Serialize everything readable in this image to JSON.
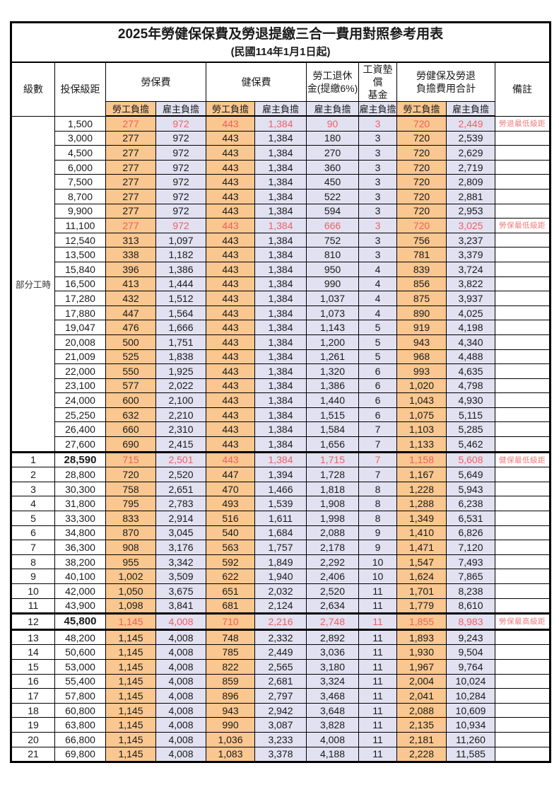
{
  "title": "2025年勞健保保費及勞退提繳三合一費用對照參考用表",
  "subtitle": "(民國114年1月1日起)",
  "colors": {
    "employee_bg": "#F9C78F",
    "employer_bg": "#E1E1F2",
    "value_red": "#F15F5F",
    "remark_red": "#F07B7B",
    "border_color": "#000000"
  },
  "header": {
    "level": "級數",
    "bracket": "投保級距",
    "groups": [
      {
        "label_lines": [
          "勞保費"
        ],
        "subs": [
          "勞工負擔",
          "雇主負擔"
        ]
      },
      {
        "label_lines": [
          "健保費"
        ],
        "subs": [
          "勞工負擔",
          "雇主負擔"
        ]
      },
      {
        "label_lines": [
          "勞工退休",
          "金(提繳6%)"
        ],
        "subs": [
          "雇主負擔"
        ]
      },
      {
        "label_lines": [
          "工資墊償",
          "基金"
        ],
        "subs": [
          "雇主負擔"
        ]
      },
      {
        "label_lines": [
          "勞健保及勞退",
          "負擔費用合計"
        ],
        "subs": [
          "勞工負擔",
          "雇主負擔"
        ]
      }
    ],
    "remark": "備註"
  },
  "part_time_label": "部分工時",
  "rows": [
    {
      "level": "",
      "bracket": "1,500",
      "cells": [
        "277",
        "972",
        "443",
        "1,384",
        "90",
        "3",
        "720",
        "2,449"
      ],
      "remark": "勞退最低級距",
      "highlight": true,
      "bold_bracket": false,
      "thick_top": false
    },
    {
      "level": "",
      "bracket": "3,000",
      "cells": [
        "277",
        "972",
        "443",
        "1,384",
        "180",
        "3",
        "720",
        "2,539"
      ],
      "remark": "",
      "highlight": false,
      "bold_bracket": false,
      "thick_top": false
    },
    {
      "level": "",
      "bracket": "4,500",
      "cells": [
        "277",
        "972",
        "443",
        "1,384",
        "270",
        "3",
        "720",
        "2,629"
      ],
      "remark": "",
      "highlight": false,
      "bold_bracket": false,
      "thick_top": false
    },
    {
      "level": "",
      "bracket": "6,000",
      "cells": [
        "277",
        "972",
        "443",
        "1,384",
        "360",
        "3",
        "720",
        "2,719"
      ],
      "remark": "",
      "highlight": false,
      "bold_bracket": false,
      "thick_top": false
    },
    {
      "level": "",
      "bracket": "7,500",
      "cells": [
        "277",
        "972",
        "443",
        "1,384",
        "450",
        "3",
        "720",
        "2,809"
      ],
      "remark": "",
      "highlight": false,
      "bold_bracket": false,
      "thick_top": false
    },
    {
      "level": "",
      "bracket": "8,700",
      "cells": [
        "277",
        "972",
        "443",
        "1,384",
        "522",
        "3",
        "720",
        "2,881"
      ],
      "remark": "",
      "highlight": false,
      "bold_bracket": false,
      "thick_top": false
    },
    {
      "level": "",
      "bracket": "9,900",
      "cells": [
        "277",
        "972",
        "443",
        "1,384",
        "594",
        "3",
        "720",
        "2,953"
      ],
      "remark": "",
      "highlight": false,
      "bold_bracket": false,
      "thick_top": false
    },
    {
      "level": "",
      "bracket": "11,100",
      "cells": [
        "277",
        "972",
        "443",
        "1,384",
        "666",
        "3",
        "720",
        "3,025"
      ],
      "remark": "勞保最低級距",
      "highlight": true,
      "bold_bracket": false,
      "thick_top": false
    },
    {
      "level": "",
      "bracket": "12,540",
      "cells": [
        "313",
        "1,097",
        "443",
        "1,384",
        "752",
        "3",
        "756",
        "3,237"
      ],
      "remark": "",
      "highlight": false,
      "bold_bracket": false,
      "thick_top": false
    },
    {
      "level": "",
      "bracket": "13,500",
      "cells": [
        "338",
        "1,182",
        "443",
        "1,384",
        "810",
        "3",
        "781",
        "3,379"
      ],
      "remark": "",
      "highlight": false,
      "bold_bracket": false,
      "thick_top": false
    },
    {
      "level": "",
      "bracket": "15,840",
      "cells": [
        "396",
        "1,386",
        "443",
        "1,384",
        "950",
        "4",
        "839",
        "3,724"
      ],
      "remark": "",
      "highlight": false,
      "bold_bracket": false,
      "thick_top": false
    },
    {
      "level": "",
      "bracket": "16,500",
      "cells": [
        "413",
        "1,444",
        "443",
        "1,384",
        "990",
        "4",
        "856",
        "3,822"
      ],
      "remark": "",
      "highlight": false,
      "bold_bracket": false,
      "thick_top": false
    },
    {
      "level": "",
      "bracket": "17,280",
      "cells": [
        "432",
        "1,512",
        "443",
        "1,384",
        "1,037",
        "4",
        "875",
        "3,937"
      ],
      "remark": "",
      "highlight": false,
      "bold_bracket": false,
      "thick_top": false
    },
    {
      "level": "",
      "bracket": "17,880",
      "cells": [
        "447",
        "1,564",
        "443",
        "1,384",
        "1,073",
        "4",
        "890",
        "4,025"
      ],
      "remark": "",
      "highlight": false,
      "bold_bracket": false,
      "thick_top": false
    },
    {
      "level": "",
      "bracket": "19,047",
      "cells": [
        "476",
        "1,666",
        "443",
        "1,384",
        "1,143",
        "5",
        "919",
        "4,198"
      ],
      "remark": "",
      "highlight": false,
      "bold_bracket": false,
      "thick_top": false
    },
    {
      "level": "",
      "bracket": "20,008",
      "cells": [
        "500",
        "1,751",
        "443",
        "1,384",
        "1,200",
        "5",
        "943",
        "4,340"
      ],
      "remark": "",
      "highlight": false,
      "bold_bracket": false,
      "thick_top": false
    },
    {
      "level": "",
      "bracket": "21,009",
      "cells": [
        "525",
        "1,838",
        "443",
        "1,384",
        "1,261",
        "5",
        "968",
        "4,488"
      ],
      "remark": "",
      "highlight": false,
      "bold_bracket": false,
      "thick_top": false
    },
    {
      "level": "",
      "bracket": "22,000",
      "cells": [
        "550",
        "1,925",
        "443",
        "1,384",
        "1,320",
        "6",
        "993",
        "4,635"
      ],
      "remark": "",
      "highlight": false,
      "bold_bracket": false,
      "thick_top": false
    },
    {
      "level": "",
      "bracket": "23,100",
      "cells": [
        "577",
        "2,022",
        "443",
        "1,384",
        "1,386",
        "6",
        "1,020",
        "4,798"
      ],
      "remark": "",
      "highlight": false,
      "bold_bracket": false,
      "thick_top": false
    },
    {
      "level": "",
      "bracket": "24,000",
      "cells": [
        "600",
        "2,100",
        "443",
        "1,384",
        "1,440",
        "6",
        "1,043",
        "4,930"
      ],
      "remark": "",
      "highlight": false,
      "bold_bracket": false,
      "thick_top": false
    },
    {
      "level": "",
      "bracket": "25,250",
      "cells": [
        "632",
        "2,210",
        "443",
        "1,384",
        "1,515",
        "6",
        "1,075",
        "5,115"
      ],
      "remark": "",
      "highlight": false,
      "bold_bracket": false,
      "thick_top": false
    },
    {
      "level": "",
      "bracket": "26,400",
      "cells": [
        "660",
        "2,310",
        "443",
        "1,384",
        "1,584",
        "7",
        "1,103",
        "5,285"
      ],
      "remark": "",
      "highlight": false,
      "bold_bracket": false,
      "thick_top": false
    },
    {
      "level": "",
      "bracket": "27,600",
      "cells": [
        "690",
        "2,415",
        "443",
        "1,384",
        "1,656",
        "7",
        "1,133",
        "5,462"
      ],
      "remark": "",
      "highlight": false,
      "bold_bracket": false,
      "thick_top": false
    },
    {
      "level": "1",
      "bracket": "28,590",
      "cells": [
        "715",
        "2,501",
        "443",
        "1,384",
        "1,715",
        "7",
        "1,158",
        "5,608"
      ],
      "remark": "健保最低級距",
      "highlight": true,
      "bold_bracket": true,
      "thick_top": true
    },
    {
      "level": "2",
      "bracket": "28,800",
      "cells": [
        "720",
        "2,520",
        "447",
        "1,394",
        "1,728",
        "7",
        "1,167",
        "5,649"
      ],
      "remark": "",
      "highlight": false,
      "bold_bracket": false,
      "thick_top": false
    },
    {
      "level": "3",
      "bracket": "30,300",
      "cells": [
        "758",
        "2,651",
        "470",
        "1,466",
        "1,818",
        "8",
        "1,228",
        "5,943"
      ],
      "remark": "",
      "highlight": false,
      "bold_bracket": false,
      "thick_top": false
    },
    {
      "level": "4",
      "bracket": "31,800",
      "cells": [
        "795",
        "2,783",
        "493",
        "1,539",
        "1,908",
        "8",
        "1,288",
        "6,238"
      ],
      "remark": "",
      "highlight": false,
      "bold_bracket": false,
      "thick_top": false
    },
    {
      "level": "5",
      "bracket": "33,300",
      "cells": [
        "833",
        "2,914",
        "516",
        "1,611",
        "1,998",
        "8",
        "1,349",
        "6,531"
      ],
      "remark": "",
      "highlight": false,
      "bold_bracket": false,
      "thick_top": false
    },
    {
      "level": "6",
      "bracket": "34,800",
      "cells": [
        "870",
        "3,045",
        "540",
        "1,684",
        "2,088",
        "9",
        "1,410",
        "6,826"
      ],
      "remark": "",
      "highlight": false,
      "bold_bracket": false,
      "thick_top": false
    },
    {
      "level": "7",
      "bracket": "36,300",
      "cells": [
        "908",
        "3,176",
        "563",
        "1,757",
        "2,178",
        "9",
        "1,471",
        "7,120"
      ],
      "remark": "",
      "highlight": false,
      "bold_bracket": false,
      "thick_top": false
    },
    {
      "level": "8",
      "bracket": "38,200",
      "cells": [
        "955",
        "3,342",
        "592",
        "1,849",
        "2,292",
        "10",
        "1,547",
        "7,493"
      ],
      "remark": "",
      "highlight": false,
      "bold_bracket": false,
      "thick_top": false
    },
    {
      "level": "9",
      "bracket": "40,100",
      "cells": [
        "1,002",
        "3,509",
        "622",
        "1,940",
        "2,406",
        "10",
        "1,624",
        "7,865"
      ],
      "remark": "",
      "highlight": false,
      "bold_bracket": false,
      "thick_top": false
    },
    {
      "level": "10",
      "bracket": "42,000",
      "cells": [
        "1,050",
        "3,675",
        "651",
        "2,032",
        "2,520",
        "11",
        "1,701",
        "8,238"
      ],
      "remark": "",
      "highlight": false,
      "bold_bracket": false,
      "thick_top": false
    },
    {
      "level": "11",
      "bracket": "43,900",
      "cells": [
        "1,098",
        "3,841",
        "681",
        "2,124",
        "2,634",
        "11",
        "1,779",
        "8,610"
      ],
      "remark": "",
      "highlight": false,
      "bold_bracket": false,
      "thick_top": false
    },
    {
      "level": "12",
      "bracket": "45,800",
      "cells": [
        "1,145",
        "4,008",
        "710",
        "2,216",
        "2,748",
        "11",
        "1,855",
        "8,983"
      ],
      "remark": "勞保最高級距",
      "highlight": true,
      "bold_bracket": true,
      "thick_top": true
    },
    {
      "level": "13",
      "bracket": "48,200",
      "cells": [
        "1,145",
        "4,008",
        "748",
        "2,332",
        "2,892",
        "11",
        "1,893",
        "9,243"
      ],
      "remark": "",
      "highlight": false,
      "bold_bracket": false,
      "thick_top": true
    },
    {
      "level": "14",
      "bracket": "50,600",
      "cells": [
        "1,145",
        "4,008",
        "785",
        "2,449",
        "3,036",
        "11",
        "1,930",
        "9,504"
      ],
      "remark": "",
      "highlight": false,
      "bold_bracket": false,
      "thick_top": false
    },
    {
      "level": "15",
      "bracket": "53,000",
      "cells": [
        "1,145",
        "4,008",
        "822",
        "2,565",
        "3,180",
        "11",
        "1,967",
        "9,764"
      ],
      "remark": "",
      "highlight": false,
      "bold_bracket": false,
      "thick_top": false
    },
    {
      "level": "16",
      "bracket": "55,400",
      "cells": [
        "1,145",
        "4,008",
        "859",
        "2,681",
        "3,324",
        "11",
        "2,004",
        "10,024"
      ],
      "remark": "",
      "highlight": false,
      "bold_bracket": false,
      "thick_top": false
    },
    {
      "level": "17",
      "bracket": "57,800",
      "cells": [
        "1,145",
        "4,008",
        "896",
        "2,797",
        "3,468",
        "11",
        "2,041",
        "10,284"
      ],
      "remark": "",
      "highlight": false,
      "bold_bracket": false,
      "thick_top": false
    },
    {
      "level": "18",
      "bracket": "60,800",
      "cells": [
        "1,145",
        "4,008",
        "943",
        "2,942",
        "3,648",
        "11",
        "2,088",
        "10,609"
      ],
      "remark": "",
      "highlight": false,
      "bold_bracket": false,
      "thick_top": false
    },
    {
      "level": "19",
      "bracket": "63,800",
      "cells": [
        "1,145",
        "4,008",
        "990",
        "3,087",
        "3,828",
        "11",
        "2,135",
        "10,934"
      ],
      "remark": "",
      "highlight": false,
      "bold_bracket": false,
      "thick_top": false
    },
    {
      "level": "20",
      "bracket": "66,800",
      "cells": [
        "1,145",
        "4,008",
        "1,036",
        "3,233",
        "4,008",
        "11",
        "2,181",
        "11,260"
      ],
      "remark": "",
      "highlight": false,
      "bold_bracket": false,
      "thick_top": false
    },
    {
      "level": "21",
      "bracket": "69,800",
      "cells": [
        "1,145",
        "4,008",
        "1,083",
        "3,378",
        "4,188",
        "11",
        "2,228",
        "11,585"
      ],
      "remark": "",
      "highlight": false,
      "bold_bracket": false,
      "thick_top": false
    }
  ]
}
